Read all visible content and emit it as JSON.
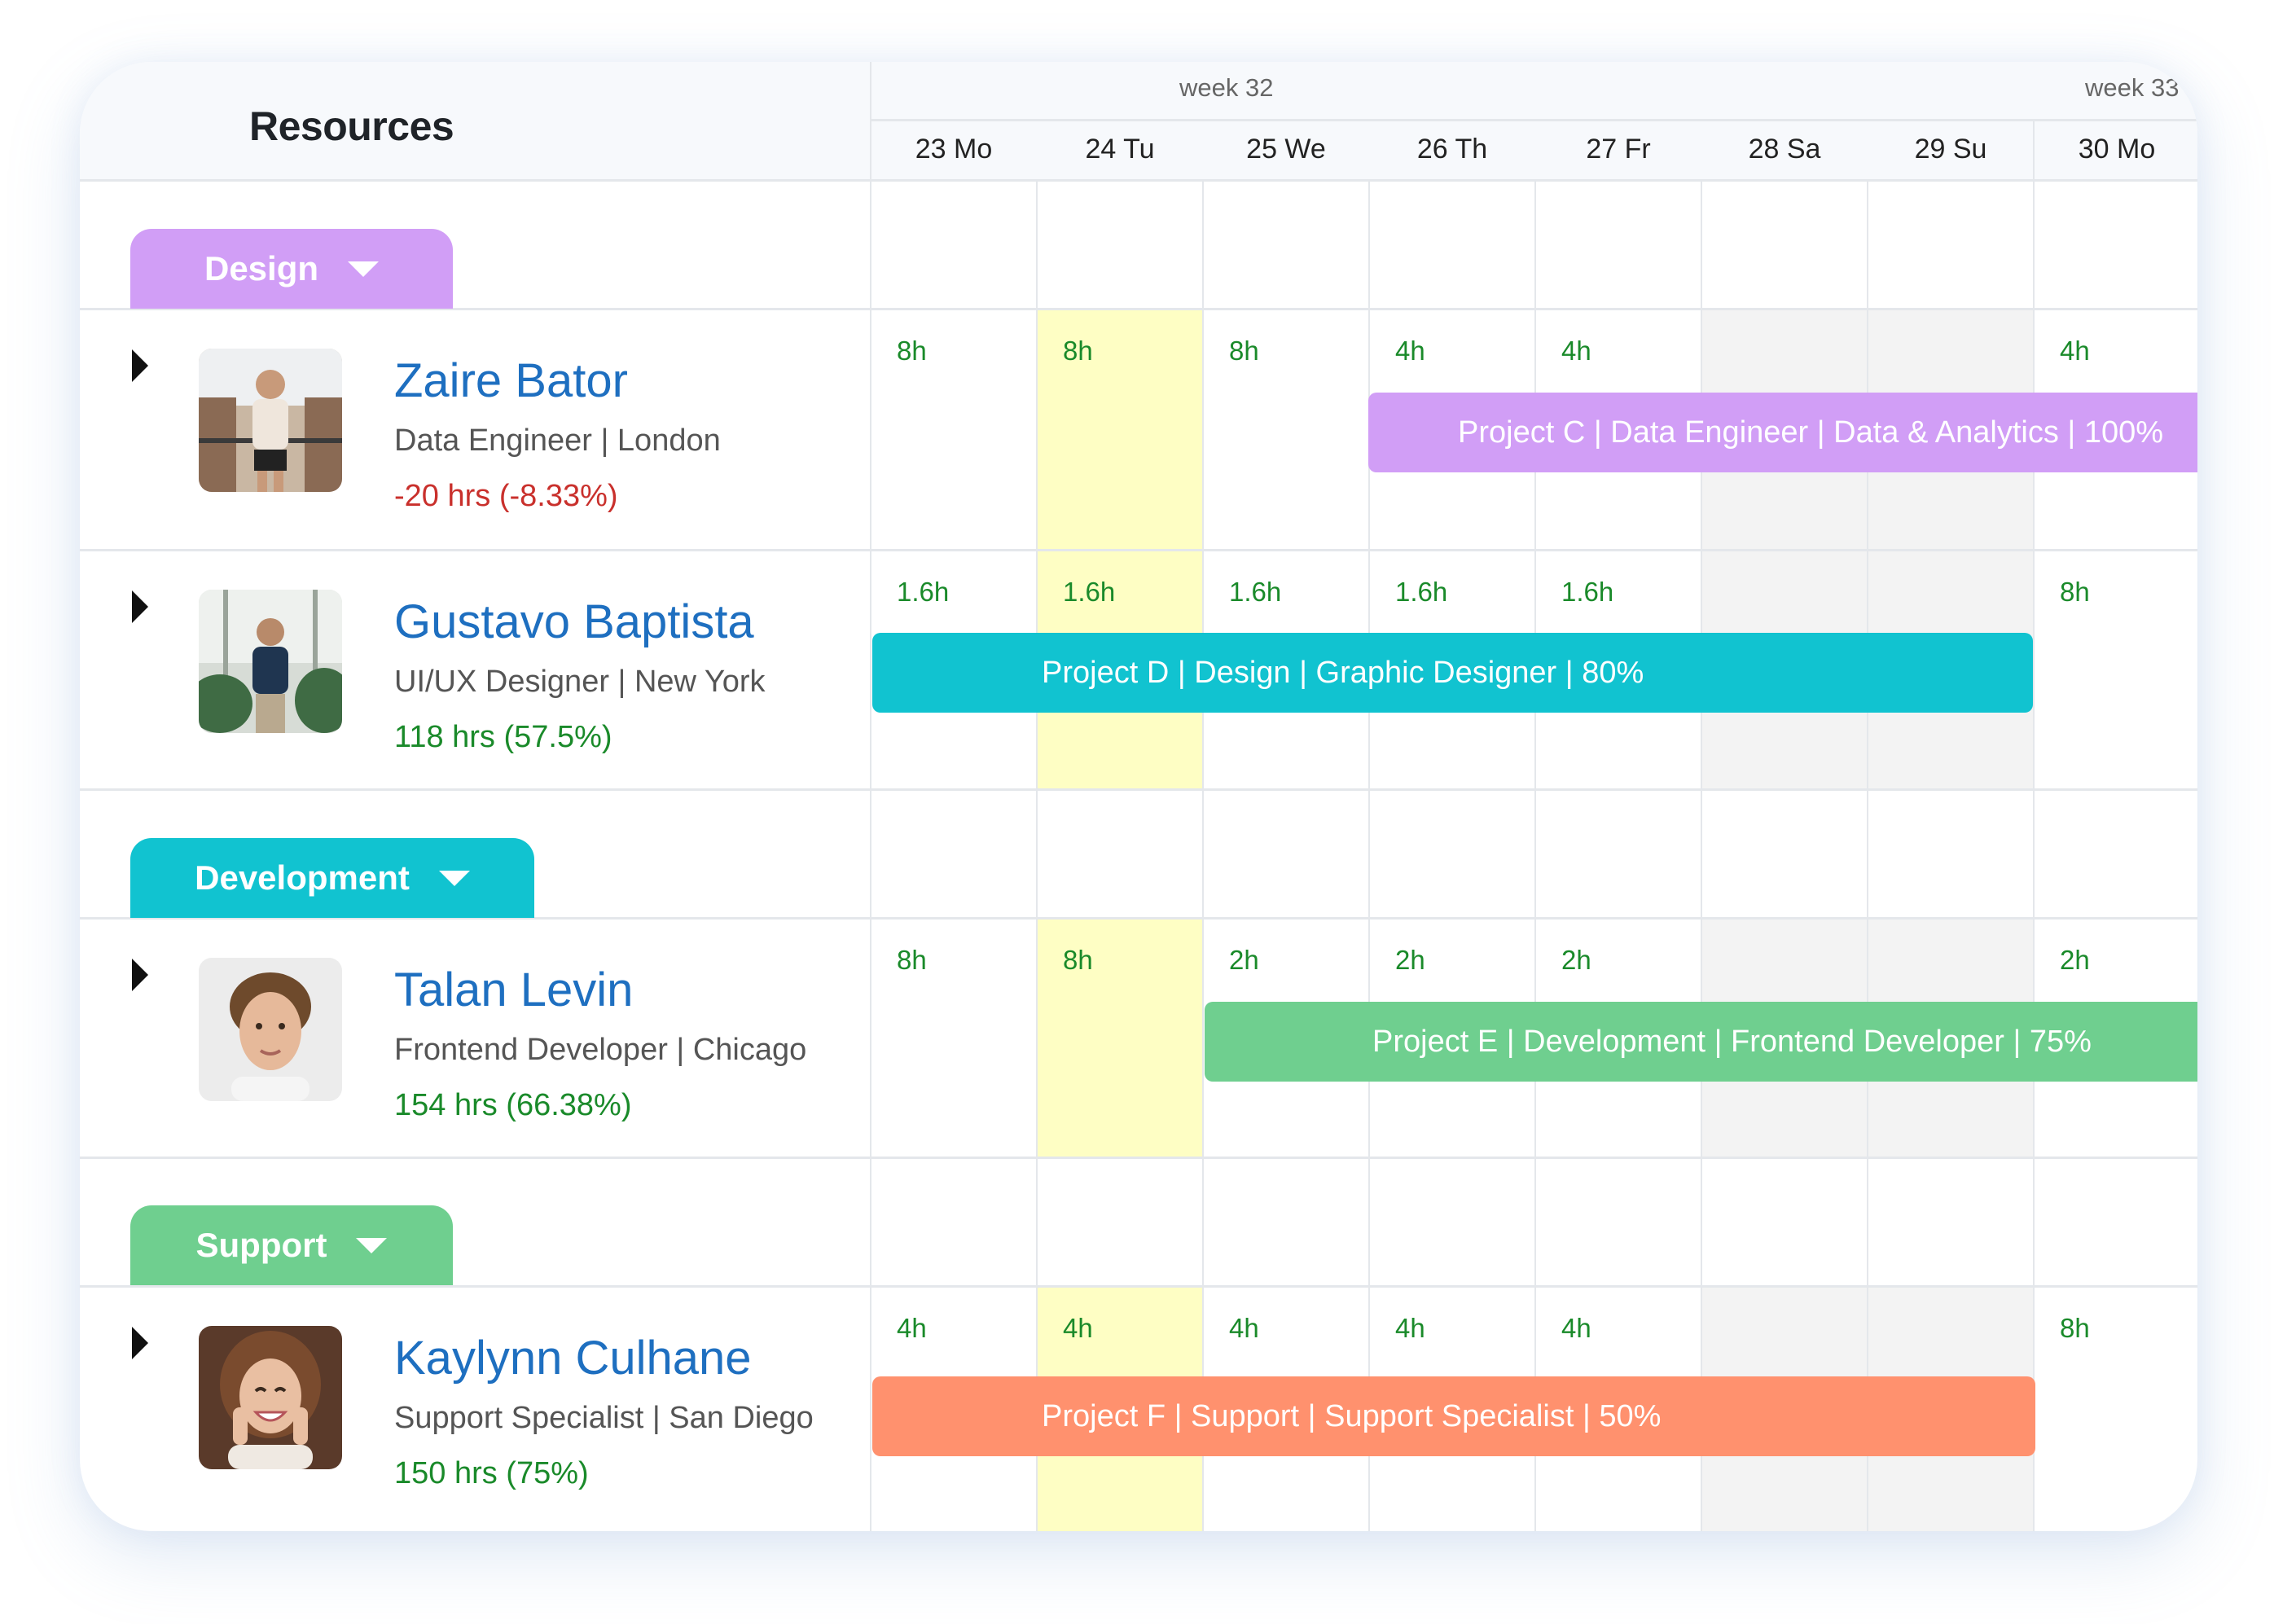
{
  "header": {
    "title": "Resources",
    "weeks": [
      {
        "label": "week 32"
      },
      {
        "label": "week 33"
      }
    ],
    "days": [
      "23 Mo",
      "24 Tu",
      "25 We",
      "26 Th",
      "27 Fr",
      "28 Sa",
      "29 Su",
      "30 Mo"
    ]
  },
  "colors": {
    "design": "#d19ef6",
    "development": "#11c3d0",
    "support": "#6fcf8f",
    "project_f": "#ff916e",
    "today_highlight": "#fefec4",
    "weekend": "#f3f3f3"
  },
  "groups": [
    {
      "label": "Design",
      "icon": "caret-down-icon"
    },
    {
      "label": "Development",
      "icon": "caret-down-icon"
    },
    {
      "label": "Support",
      "icon": "caret-down-icon"
    }
  ],
  "resources": [
    {
      "name": "Zaire Bator",
      "role": "Data Engineer | London",
      "hours_summary": "-20 hrs (-8.33%)",
      "day_hours": [
        "8h",
        "8h",
        "8h",
        "4h",
        "4h",
        "",
        "",
        "4h"
      ],
      "project_bar": "Project C |  Data Engineer | Data & Analytics | 100%"
    },
    {
      "name": "Gustavo Baptista",
      "role": "UI/UX Designer | New York",
      "hours_summary": "118 hrs (57.5%)",
      "day_hours": [
        "1.6h",
        "1.6h",
        "1.6h",
        "1.6h",
        "1.6h",
        "",
        "",
        "8h"
      ],
      "project_bar": "Project D |  Design | Graphic Designer | 80%"
    },
    {
      "name": "Talan Levin",
      "role": "Frontend Developer | Chicago",
      "hours_summary": "154 hrs (66.38%)",
      "day_hours": [
        "8h",
        "8h",
        "2h",
        "2h",
        "2h",
        "",
        "",
        "2h"
      ],
      "project_bar": "Project E |  Development  | Frontend Developer | 75%"
    },
    {
      "name": "Kaylynn Culhane",
      "role": "Support Specialist | San Diego",
      "hours_summary": "150 hrs (75%)",
      "day_hours": [
        "4h",
        "4h",
        "4h",
        "4h",
        "4h",
        "",
        "",
        "8h"
      ],
      "project_bar": "Project F | Support | Support Specialist | 50%"
    }
  ]
}
